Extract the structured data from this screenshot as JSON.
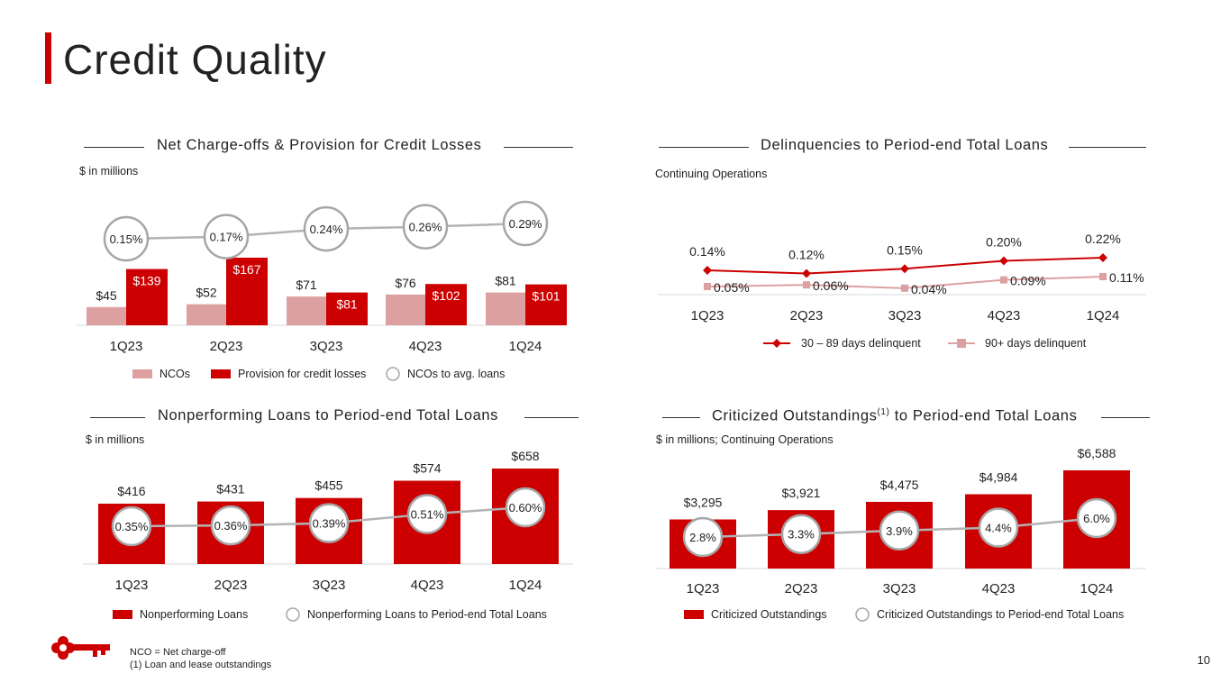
{
  "title": "Credit Quality",
  "page_number": "10",
  "footnotes": [
    "NCO = Net charge-off",
    "(1) Loan and lease outstandings"
  ],
  "colors": {
    "accent": "#cc0000",
    "light": "#dda0a0",
    "line_gray": "#b3b3b3",
    "circle_gray": "#a6a6a6"
  },
  "chart_data": [
    {
      "type": "bar",
      "title": "Net Charge-offs & Provision for Credit Losses",
      "subtitle": "$ in millions",
      "categories": [
        "1Q23",
        "2Q23",
        "3Q23",
        "4Q23",
        "1Q24"
      ],
      "series": [
        {
          "name": "NCOs",
          "values": [
            45,
            52,
            71,
            76,
            81
          ],
          "labels": [
            "$45",
            "$52",
            "$71",
            "$76",
            "$81"
          ]
        },
        {
          "name": "Provision for credit losses",
          "values": [
            139,
            167,
            81,
            102,
            101
          ],
          "labels": [
            "$139",
            "$167",
            "$81",
            "$102",
            "$101"
          ]
        },
        {
          "name": "NCOs to avg. loans",
          "values": [
            0.15,
            0.17,
            0.24,
            0.26,
            0.29
          ],
          "labels": [
            "0.15%",
            "0.17%",
            "0.24%",
            "0.26%",
            "0.29%"
          ]
        }
      ]
    },
    {
      "type": "line",
      "title": "Delinquencies to Period-end Total Loans",
      "subtitle": "Continuing Operations",
      "categories": [
        "1Q23",
        "2Q23",
        "3Q23",
        "4Q23",
        "1Q24"
      ],
      "series": [
        {
          "name": "30 – 89 days delinquent",
          "values": [
            0.14,
            0.12,
            0.15,
            0.2,
            0.22
          ],
          "labels": [
            "0.14%",
            "0.12%",
            "0.15%",
            "0.20%",
            "0.22%"
          ]
        },
        {
          "name": "90+ days delinquent",
          "values": [
            0.05,
            0.06,
            0.04,
            0.09,
            0.11
          ],
          "labels": [
            "0.05%",
            "0.06%",
            "0.04%",
            "0.09%",
            "0.11%"
          ]
        }
      ]
    },
    {
      "type": "bar",
      "title": "Nonperforming Loans to Period-end Total Loans",
      "subtitle": "$ in millions",
      "categories": [
        "1Q23",
        "2Q23",
        "3Q23",
        "4Q23",
        "1Q24"
      ],
      "series": [
        {
          "name": "Nonperforming Loans",
          "values": [
            416,
            431,
            455,
            574,
            658
          ],
          "labels": [
            "$416",
            "$431",
            "$455",
            "$574",
            "$658"
          ]
        },
        {
          "name": "Nonperforming Loans to Period-end Total Loans",
          "values": [
            0.35,
            0.36,
            0.39,
            0.51,
            0.6
          ],
          "labels": [
            "0.35%",
            "0.36%",
            "0.39%",
            "0.51%",
            "0.60%"
          ]
        }
      ]
    },
    {
      "type": "bar",
      "title": "Criticized Outstandings",
      "title_sup": "(1)",
      "title_suffix": "to Period-end Total Loans",
      "subtitle": "$ in millions; Continuing Operations",
      "categories": [
        "1Q23",
        "2Q23",
        "3Q23",
        "4Q23",
        "1Q24"
      ],
      "series": [
        {
          "name": "Criticized Outstandings",
          "values": [
            3295,
            3921,
            4475,
            4984,
            6588
          ],
          "labels": [
            "$3,295",
            "$3,921",
            "$4,475",
            "$4,984",
            "$6,588"
          ]
        },
        {
          "name": "Criticized Outstandings to Period-end Total Loans",
          "values": [
            2.8,
            3.3,
            3.9,
            4.4,
            6.0
          ],
          "labels": [
            "2.8%",
            "3.3%",
            "3.9%",
            "4.4%",
            "6.0%"
          ]
        }
      ]
    }
  ]
}
